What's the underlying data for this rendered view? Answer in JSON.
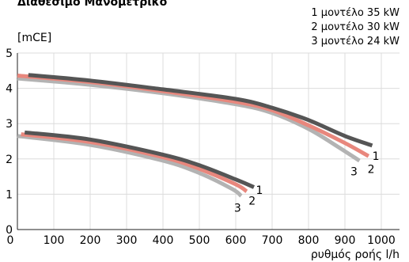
{
  "chart_data": {
    "type": "line",
    "title": "Διαθέσιμο Μανομετρικό",
    "ylabel": "[mCE]",
    "xlabel": "ρυθμός ροής l/h",
    "xlim": [
      0,
      1050
    ],
    "ylim": [
      0,
      5
    ],
    "x_ticks": [
      "0",
      "100",
      "200",
      "300",
      "400",
      "500",
      "600",
      "700",
      "800",
      "900",
      "1000"
    ],
    "y_ticks": [
      "0",
      "1",
      "2",
      "3",
      "4",
      "5"
    ],
    "grid": true,
    "legend_position": "top-right",
    "legend": [
      {
        "label": "1 μοντέλο 35 kW"
      },
      {
        "label": "2 μοντέλο 30 kW"
      },
      {
        "label": "3 μοντέλο 24 kW"
      }
    ],
    "series": [
      {
        "label": "1",
        "group": "upper",
        "color": "#555555",
        "points": [
          [
            30,
            4.38
          ],
          [
            200,
            4.22
          ],
          [
            400,
            3.97
          ],
          [
            600,
            3.7
          ],
          [
            700,
            3.45
          ],
          [
            800,
            3.1
          ],
          [
            900,
            2.65
          ],
          [
            975,
            2.38
          ]
        ]
      },
      {
        "label": "2",
        "group": "upper",
        "color": "#e8877d",
        "points": [
          [
            0,
            4.36
          ],
          [
            200,
            4.18
          ],
          [
            400,
            3.92
          ],
          [
            600,
            3.62
          ],
          [
            700,
            3.38
          ],
          [
            800,
            2.95
          ],
          [
            900,
            2.45
          ],
          [
            965,
            2.08
          ]
        ]
      },
      {
        "label": "3",
        "group": "upper",
        "color": "#b3b3b3",
        "points": [
          [
            0,
            4.28
          ],
          [
            200,
            4.1
          ],
          [
            400,
            3.86
          ],
          [
            600,
            3.55
          ],
          [
            700,
            3.3
          ],
          [
            800,
            2.85
          ],
          [
            880,
            2.35
          ],
          [
            940,
            1.95
          ]
        ]
      },
      {
        "label": "1",
        "group": "lower",
        "color": "#555555",
        "points": [
          [
            20,
            2.75
          ],
          [
            200,
            2.55
          ],
          [
            400,
            2.12
          ],
          [
            500,
            1.82
          ],
          [
            600,
            1.42
          ],
          [
            650,
            1.2
          ]
        ]
      },
      {
        "label": "2",
        "group": "lower",
        "color": "#e8877d",
        "points": [
          [
            10,
            2.7
          ],
          [
            200,
            2.48
          ],
          [
            400,
            2.05
          ],
          [
            500,
            1.72
          ],
          [
            600,
            1.28
          ],
          [
            630,
            1.08
          ]
        ]
      },
      {
        "label": "3",
        "group": "lower",
        "color": "#b3b3b3",
        "points": [
          [
            0,
            2.65
          ],
          [
            200,
            2.4
          ],
          [
            400,
            1.95
          ],
          [
            500,
            1.6
          ],
          [
            590,
            1.15
          ],
          [
            615,
            0.95
          ]
        ]
      }
    ],
    "curve_labels": [
      {
        "text": "1",
        "x": 985,
        "y": 2.08
      },
      {
        "text": "2",
        "x": 972,
        "y": 1.72
      },
      {
        "text": "3",
        "x": 925,
        "y": 1.65
      },
      {
        "text": "1",
        "x": 665,
        "y": 1.12
      },
      {
        "text": "2",
        "x": 645,
        "y": 0.82
      },
      {
        "text": "3",
        "x": 605,
        "y": 0.62
      }
    ]
  }
}
